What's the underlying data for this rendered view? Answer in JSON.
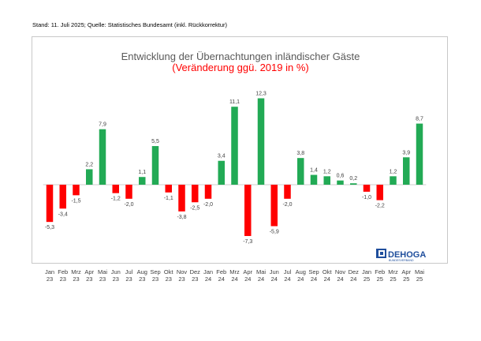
{
  "header": {
    "note": "Stand: 11. Juli 2025; Quelle: Statistisches Bundesamt (inkl. Rückkorrektur)"
  },
  "logo": {
    "name": "DEHOGA",
    "subtitle": "BUNDESVERBAND",
    "icon": "dehoga-logo-icon",
    "color": "#1f4e9c"
  },
  "chart_data": {
    "type": "bar",
    "title": "Entwicklung der Übernachtungen inländischer Gäste",
    "subtitle": "(Veränderung ggü. 2019 in %)",
    "xlabel": "",
    "ylabel": "",
    "grid": false,
    "colors": {
      "positive": "#22aa55",
      "negative": "#ff0000",
      "title": "#595959",
      "subtitle": "#ff0000"
    },
    "ylim": [
      -8,
      13
    ],
    "categories": [
      {
        "m": "Jan",
        "y": "23"
      },
      {
        "m": "Feb",
        "y": "23"
      },
      {
        "m": "Mrz",
        "y": "23"
      },
      {
        "m": "Apr",
        "y": "23"
      },
      {
        "m": "Mai",
        "y": "23"
      },
      {
        "m": "Jun",
        "y": "23"
      },
      {
        "m": "Jul",
        "y": "23"
      },
      {
        "m": "Aug",
        "y": "23"
      },
      {
        "m": "Sep",
        "y": "23"
      },
      {
        "m": "Okt",
        "y": "23"
      },
      {
        "m": "Nov",
        "y": "23"
      },
      {
        "m": "Dez",
        "y": "23"
      },
      {
        "m": "Jan",
        "y": "24"
      },
      {
        "m": "Feb",
        "y": "24"
      },
      {
        "m": "Mrz",
        "y": "24"
      },
      {
        "m": "Apr",
        "y": "24"
      },
      {
        "m": "Mai",
        "y": "24"
      },
      {
        "m": "Jun",
        "y": "24"
      },
      {
        "m": "Jul",
        "y": "24"
      },
      {
        "m": "Aug",
        "y": "24"
      },
      {
        "m": "Sep",
        "y": "24"
      },
      {
        "m": "Okt",
        "y": "24"
      },
      {
        "m": "Nov",
        "y": "24"
      },
      {
        "m": "Dez",
        "y": "24"
      },
      {
        "m": "Jan",
        "y": "25"
      },
      {
        "m": "Feb",
        "y": "25"
      },
      {
        "m": "Mrz",
        "y": "25"
      },
      {
        "m": "Apr",
        "y": "25"
      },
      {
        "m": "Mai",
        "y": "25"
      }
    ],
    "values": [
      -5.3,
      -3.4,
      -1.5,
      2.2,
      7.9,
      -1.2,
      -2.0,
      1.1,
      5.5,
      -1.1,
      -3.8,
      -2.5,
      -2.0,
      3.4,
      11.1,
      -7.3,
      12.3,
      -5.9,
      -2.0,
      3.8,
      1.4,
      1.2,
      0.6,
      0.2,
      -1.0,
      -2.2,
      1.2,
      3.9,
      8.7
    ],
    "labels": [
      "-5,3",
      "-3,4",
      "-1,5",
      "2,2",
      "7,9",
      "-1,2",
      "-2,0",
      "1,1",
      "5,5",
      "-1,1",
      "-3,8",
      "-2,5",
      "-2,0",
      "3,4",
      "11,1",
      "-7,3",
      "12,3",
      "-5,9",
      "-2,0",
      "3,8",
      "1,4",
      "1,2",
      "0,6",
      "0,2",
      "-1,0",
      "-2,2",
      "1,2",
      "3,9",
      "8,7"
    ]
  }
}
